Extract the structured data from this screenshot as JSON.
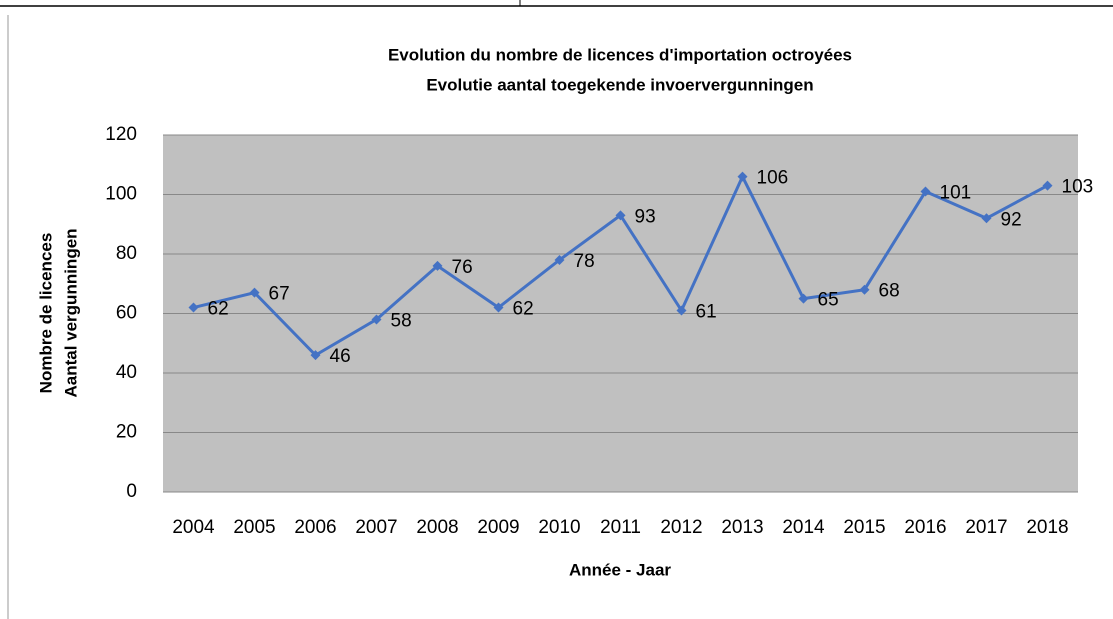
{
  "chart_data": {
    "type": "line",
    "title": [
      "Evolution du nombre de licences d'importation octroyées",
      "Evolutie aantal toegekende invoervergunningen"
    ],
    "y_label": [
      "Nombre de licences",
      "Aantal vergunningen"
    ],
    "x_label": "Année - Jaar",
    "categories": [
      "2004",
      "2005",
      "2006",
      "2007",
      "2008",
      "2009",
      "2010",
      "2011",
      "2012",
      "2013",
      "2014",
      "2015",
      "2016",
      "2017",
      "2018"
    ],
    "series": [
      {
        "name": "Licences",
        "color": "#4472c4",
        "values": [
          62,
          67,
          46,
          58,
          76,
          62,
          78,
          93,
          61,
          106,
          65,
          68,
          101,
          92,
          103
        ]
      }
    ],
    "ylim": [
      0,
      120
    ],
    "yticks": [
      0,
      20,
      40,
      60,
      80,
      100,
      120
    ],
    "grid": true,
    "plot_background": "#c0c0c0"
  }
}
